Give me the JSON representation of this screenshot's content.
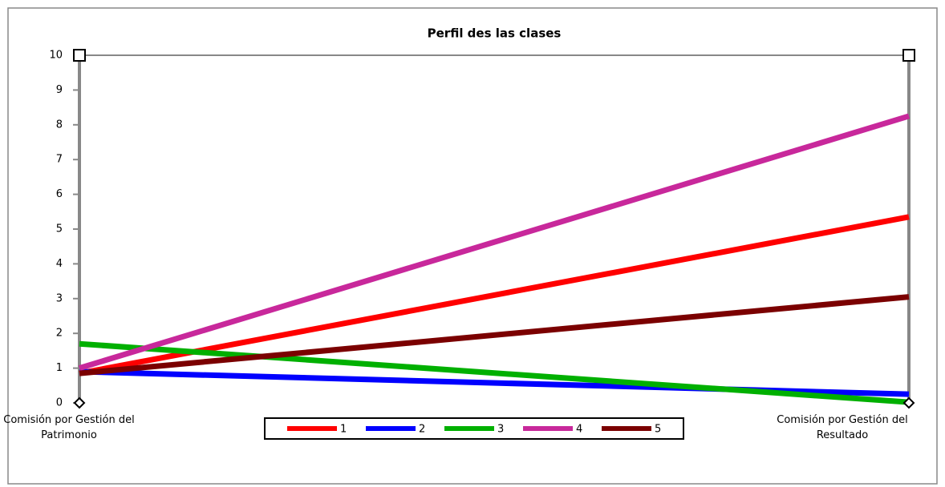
{
  "chart_data": {
    "type": "line",
    "title": "Perfil des las clases",
    "categories": [
      "Comisión por Gestión del Patrimonio",
      "Comisión por Gestión del Resultado"
    ],
    "series": [
      {
        "name": "1",
        "color": "#ff0000",
        "values": [
          0.85,
          5.35
        ]
      },
      {
        "name": "2",
        "color": "#0000ff",
        "values": [
          0.9,
          0.25
        ]
      },
      {
        "name": "3",
        "color": "#00b000",
        "values": [
          1.7,
          0.02
        ]
      },
      {
        "name": "4",
        "color": "#c8289b",
        "values": [
          1.0,
          8.25
        ]
      },
      {
        "name": "5",
        "color": "#7b0000",
        "values": [
          0.85,
          3.05
        ]
      }
    ],
    "ylim": [
      0,
      10
    ],
    "yticks": [
      0,
      1,
      2,
      3,
      4,
      5,
      6,
      7,
      8,
      9,
      10
    ],
    "grid": false,
    "legend": "bottom"
  }
}
